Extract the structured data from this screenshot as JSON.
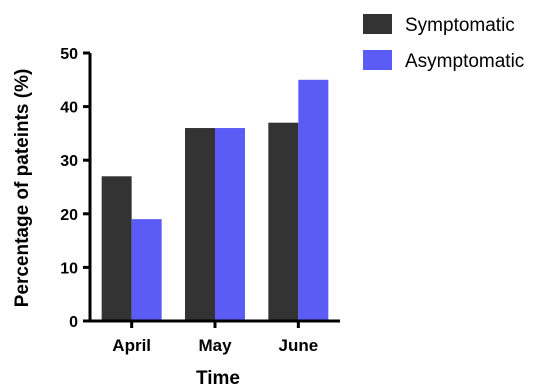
{
  "chart_data": {
    "type": "bar",
    "title": "",
    "xlabel": "Time",
    "ylabel": "Percentage of pateints (%)",
    "categories": [
      "April",
      "May",
      "June"
    ],
    "series": [
      {
        "name": "Symptomatic",
        "values": [
          27,
          36,
          37
        ],
        "color": "#333333"
      },
      {
        "name": "Asymptomatic",
        "values": [
          19,
          36,
          45
        ],
        "color": "#5b5bf5"
      }
    ],
    "ylim": [
      0,
      50
    ],
    "yticks": [
      0,
      10,
      20,
      30,
      40,
      50
    ],
    "grid": false,
    "legend_position": "top-right"
  }
}
